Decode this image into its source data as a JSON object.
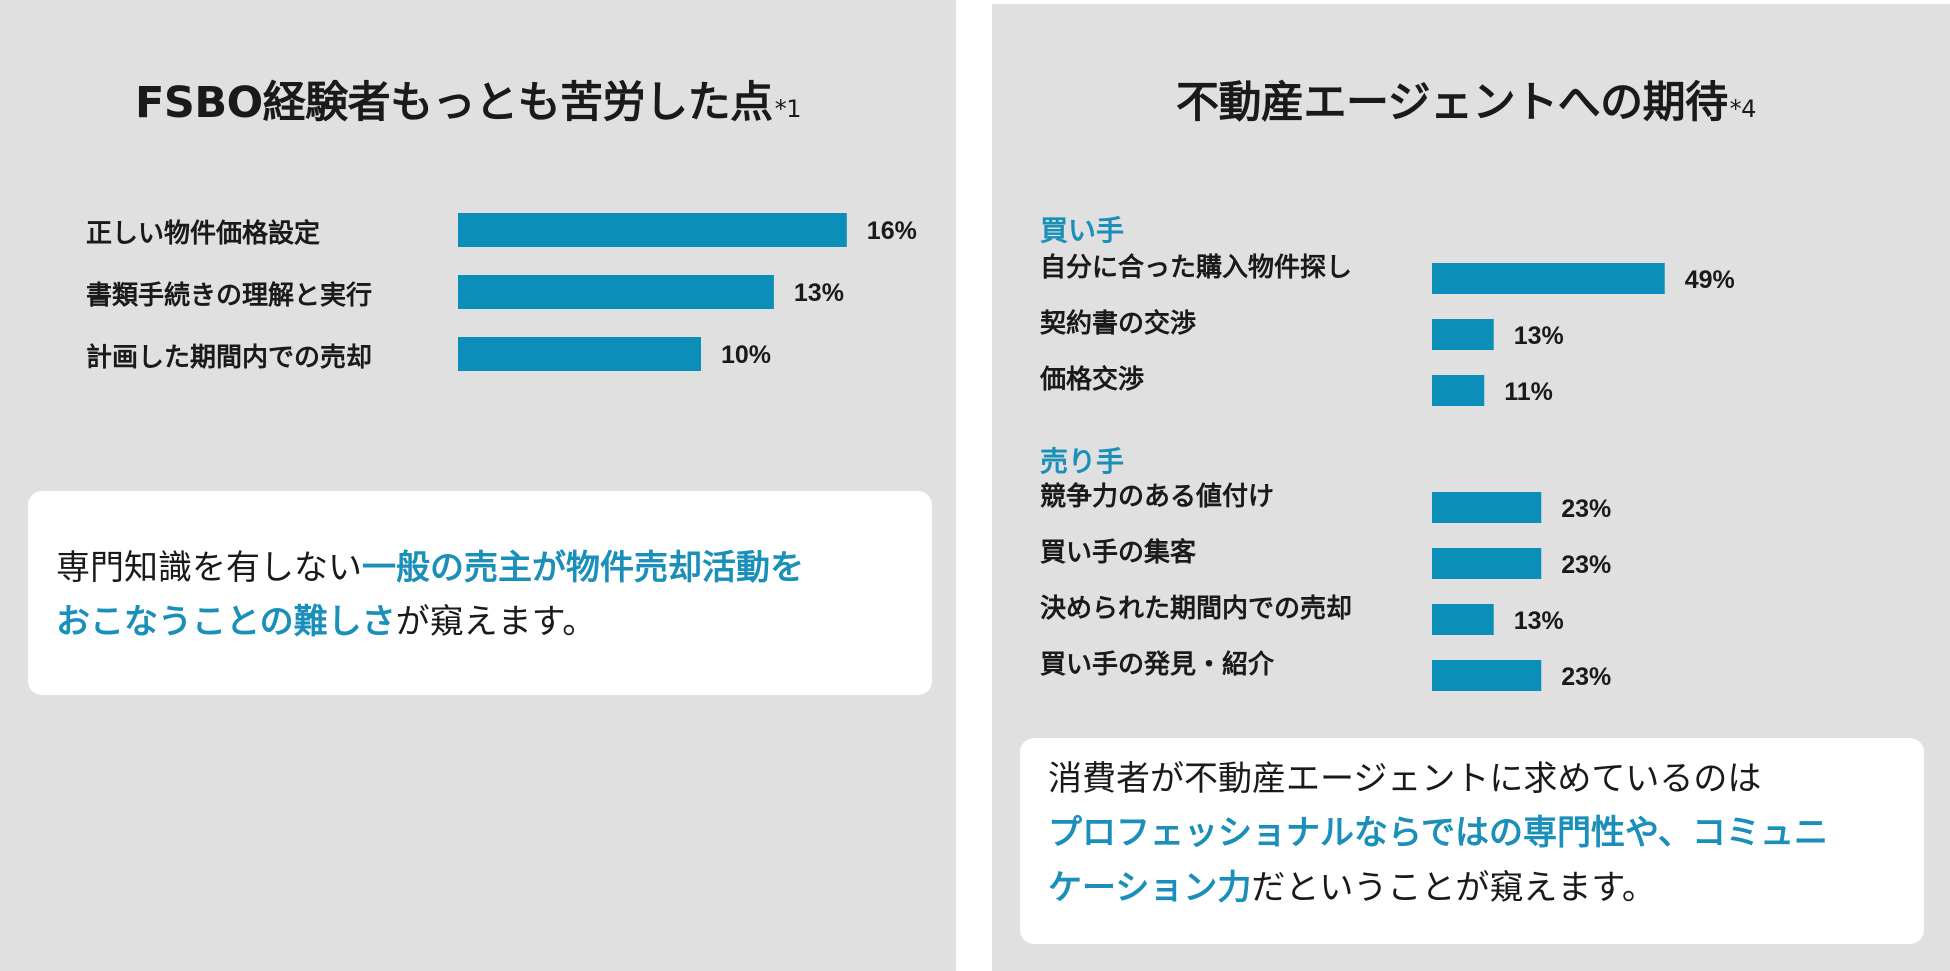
{
  "left_panel": {
    "title": "FSBO経験者もっとも苦労した点",
    "title_note": "*1",
    "summary": {
      "line1_plain": "専門知識を有しない",
      "line1_highlight": "一般の売主が物件売却活動を",
      "line2_highlight": "おこなうことの難しさ",
      "line2_plain": "が窺えます。"
    }
  },
  "right_panel": {
    "title": "不動産エージェントへの期待",
    "title_note": "*4",
    "summary": {
      "line1_plain": "消費者が不動産エージェントに求めているのは",
      "line2_highlight": "プロフェッショナルならではの専門性や、コミュニ",
      "line3_highlight": "ケーション力",
      "line3_plain": "だということが窺えます。"
    }
  },
  "chart_data": [
    {
      "type": "bar",
      "orientation": "horizontal",
      "title": "FSBO経験者もっとも苦労した点*1",
      "categories": [
        "正しい物件価格設定",
        "書類手続きの理解と実行",
        "計画した期間内での売却"
      ],
      "values": [
        16,
        13,
        10
      ],
      "value_labels": [
        "16%",
        "13%",
        "10%"
      ],
      "unit": "%",
      "color": "#0b8fb8",
      "grid": false
    },
    {
      "type": "bar",
      "orientation": "horizontal",
      "title": "不動産エージェントへの期待*4",
      "groups": [
        {
          "name": "買い手",
          "categories": [
            "自分に合った購入物件探し",
            "契約書の交渉",
            "価格交渉"
          ],
          "values": [
            49,
            13,
            11
          ],
          "value_labels": [
            "49%",
            "13%",
            "11%"
          ]
        },
        {
          "name": "売り手",
          "categories": [
            "競争力のある値付け",
            "買い手の集客",
            "決められた期間内での売却",
            "買い手の発見・紹介"
          ],
          "values": [
            23,
            23,
            13,
            23
          ],
          "value_labels": [
            "23%",
            "23%",
            "13%",
            "23%"
          ]
        }
      ],
      "unit": "%",
      "color": "#0b8fb8",
      "grid": false
    }
  ]
}
